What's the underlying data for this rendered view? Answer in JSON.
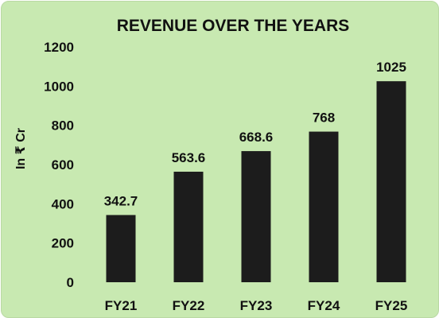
{
  "chart_data": {
    "type": "bar",
    "title": "REVENUE OVER THE YEARS",
    "ylabel": "In ₹ Cr",
    "xlabel": "",
    "categories": [
      "FY21",
      "FY22",
      "FY23",
      "FY24",
      "FY25"
    ],
    "values": [
      342.7,
      563.6,
      668.6,
      768,
      1025
    ],
    "data_labels": [
      "342.7",
      "563.6",
      "668.6",
      "768",
      "1025"
    ],
    "yticks": [
      0,
      200,
      400,
      600,
      800,
      1000,
      1200
    ],
    "ylim": [
      0,
      1200
    ],
    "grid": false,
    "legend": "none",
    "colors": {
      "background": "#c8e9b1",
      "bar": "#1c1c1c",
      "text": "#111111"
    }
  }
}
